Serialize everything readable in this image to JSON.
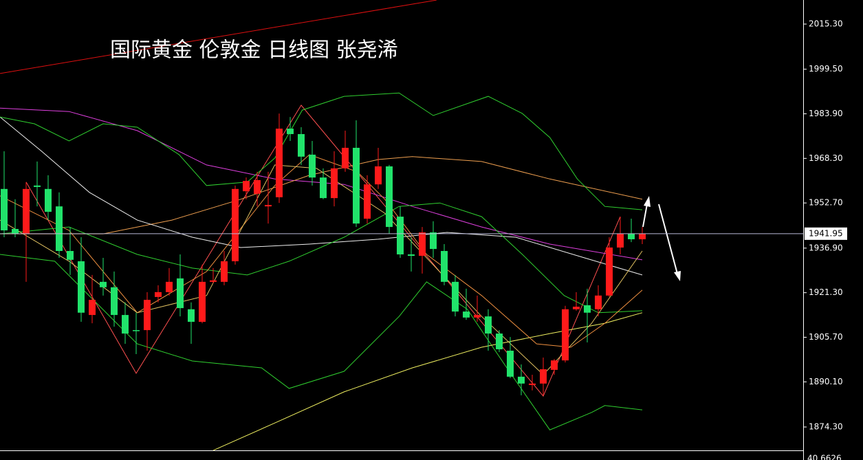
{
  "chart_data": {
    "type": "candlestick",
    "title": "国际黄金 伦敦金 日线图 张尧浠",
    "up_color": "#ff1a1a",
    "down_color": "#21e36b",
    "ylim": [
      1866.12,
      2023.72
    ],
    "yticks": [
      {
        "value": 2015.3,
        "label": "2015.30"
      },
      {
        "value": 1999.5,
        "label": "1999.50"
      },
      {
        "value": 1983.9,
        "label": "1983.90"
      },
      {
        "value": 1968.3,
        "label": "1968.30"
      },
      {
        "value": 1952.7,
        "label": "1952.70"
      },
      {
        "value": 1936.9,
        "label": "1936.90"
      },
      {
        "value": 1921.3,
        "label": "1921.30"
      },
      {
        "value": 1905.7,
        "label": "1905.70"
      },
      {
        "value": 1890.1,
        "label": "1890.10"
      },
      {
        "value": 1874.3,
        "label": "1874.30"
      }
    ],
    "current_price": 1941.95,
    "sub_panel_label": "40.6626",
    "open": [
      1957.6,
      1943.6,
      1941.9,
      1958.8,
      1957.6,
      1951.5,
      1935.9,
      1932.3,
      1913.5,
      1925.1,
      1923.2,
      1913.5,
      1908.2,
      1908.2,
      1919.8,
      1921.5,
      1926.3,
      1915.5,
      1911.1,
      1925.1,
      1925.1,
      1932.3,
      1956.8,
      1955.9,
      1951.5,
      1954.7,
      1978.7,
      1976.8,
      1969.6,
      1961.6,
      1954.4,
      1964.8,
      1972.0,
      1947.2,
      1959.2,
      1965.5,
      1947.9,
      1934.7,
      1934.2,
      1942.4,
      1935.9,
      1925.1,
      1914.7,
      1912.6,
      1913.0,
      1907.0,
      1901.0,
      1891.9,
      1889.0,
      1889.5,
      1894.3,
      1897.6,
      1915.5,
      1916.9,
      1915.5,
      1920.3,
      1937.1,
      1941.9,
      1940.0
    ],
    "high": [
      1970.8,
      1954.0,
      1960.0,
      1967.2,
      1962.4,
      1956.4,
      1944.3,
      1940.7,
      1927.5,
      1933.5,
      1928.7,
      1917.9,
      1914.3,
      1921.5,
      1923.9,
      1929.9,
      1934.7,
      1917.9,
      1931.1,
      1929.9,
      1935.9,
      1958.8,
      1961.6,
      1963.6,
      1963.6,
      1984.0,
      1982.8,
      1979.2,
      1974.4,
      1964.8,
      1970.8,
      1978.0,
      1981.6,
      1962.4,
      1972.0,
      1966.0,
      1951.5,
      1940.7,
      1944.3,
      1946.3,
      1938.3,
      1927.5,
      1922.7,
      1920.3,
      1915.5,
      1908.2,
      1905.8,
      1896.2,
      1892.6,
      1898.6,
      1898.1,
      1916.7,
      1921.5,
      1922.7,
      1923.9,
      1940.7,
      1947.9,
      1947.2,
      1944.3
    ],
    "low": [
      1940.7,
      1940.7,
      1925.1,
      1951.5,
      1946.7,
      1933.5,
      1927.5,
      1911.1,
      1910.6,
      1920.3,
      1909.4,
      1903.4,
      1899.8,
      1901.0,
      1917.9,
      1920.3,
      1913.0,
      1903.4,
      1910.6,
      1924.6,
      1923.9,
      1931.1,
      1954.0,
      1951.5,
      1945.5,
      1952.7,
      1974.4,
      1966.0,
      1958.8,
      1954.0,
      1951.5,
      1963.6,
      1944.3,
      1945.5,
      1957.6,
      1941.9,
      1933.5,
      1928.7,
      1928.0,
      1933.5,
      1923.9,
      1913.0,
      1911.8,
      1911.1,
      1901.0,
      1900.5,
      1891.4,
      1885.4,
      1887.1,
      1885.4,
      1892.6,
      1896.9,
      1915.0,
      1903.9,
      1913.0,
      1919.8,
      1934.7,
      1939.0,
      1938.3
    ],
    "close": [
      1943.1,
      1941.9,
      1957.6,
      1958.3,
      1949.6,
      1935.9,
      1932.8,
      1914.3,
      1918.8,
      1923.2,
      1913.5,
      1907.0,
      1908.0,
      1918.8,
      1921.5,
      1925.1,
      1915.9,
      1911.1,
      1925.1,
      1925.6,
      1932.3,
      1957.6,
      1960.4,
      1960.7,
      1952.0,
      1978.7,
      1976.8,
      1968.9,
      1961.6,
      1954.4,
      1964.8,
      1972.0,
      1945.5,
      1959.2,
      1965.5,
      1944.3,
      1934.7,
      1934.2,
      1942.4,
      1936.6,
      1925.1,
      1914.7,
      1912.6,
      1913.5,
      1907.0,
      1901.5,
      1891.9,
      1889.5,
      1889.5,
      1894.5,
      1897.6,
      1915.5,
      1916.4,
      1914.3,
      1920.3,
      1937.1,
      1941.9,
      1940.0,
      1941.95
    ],
    "overlays": [
      {
        "color": "#e01010",
        "x": [
          -0.375,
          39.3
        ],
        "values": [
          1998.0,
          2023.7
        ]
      },
      {
        "color": "#ff5050",
        "x": [
          2,
          12,
          27,
          49,
          56
        ],
        "values": [
          1960.0,
          1893.1,
          1986.9,
          1885.1,
          1947.9
        ]
      },
      {
        "color": "#e040e0",
        "x": [
          -0.375,
          5.9,
          12.1,
          18.4,
          24.6,
          30.9,
          37.1,
          43.4,
          49.6,
          58
        ],
        "values": [
          1985.9,
          1984.7,
          1978.0,
          1966.0,
          1961.1,
          1959.2,
          1951.5,
          1944.3,
          1938.3,
          1932.8
        ]
      },
      {
        "color": "#f0a050",
        "x": [
          -0.375,
          9,
          15.25,
          21.5,
          27.75,
          34,
          37.1,
          43.4,
          49.6,
          58
        ],
        "values": [
          1941.9,
          1941.9,
          1946.7,
          1954.0,
          1962.4,
          1967.9,
          1968.9,
          1967.2,
          1961.1,
          1954.0
        ]
      },
      {
        "color": "#f0f0f0",
        "x": [
          -0.375,
          3.4,
          7.75,
          12.1,
          17.1,
          21.5,
          27.75,
          34,
          40.25,
          46.5,
          52.75,
          58
        ],
        "values": [
          1982.8,
          1970.8,
          1956.4,
          1946.7,
          1940.7,
          1937.1,
          1938.3,
          1940.0,
          1942.4,
          1940.7,
          1933.5,
          1927.5
        ]
      },
      {
        "color": "#30d030",
        "x": [
          -0.375,
          2.75,
          5.9,
          9,
          12.1,
          15.9,
          18.4,
          22.1,
          24.6,
          27.1,
          30.9,
          35.9,
          39,
          44,
          47.1,
          49.6,
          52.1,
          54.6,
          58
        ],
        "values": [
          1982.8,
          1980.4,
          1974.4,
          1980.4,
          1979.2,
          1969.6,
          1958.8,
          1960.0,
          1968.4,
          1985.2,
          1990.0,
          1991.2,
          1983.3,
          1990.0,
          1984.0,
          1975.6,
          1961.1,
          1951.5,
          1950.3
        ]
      },
      {
        "color": "#30d030",
        "x": [
          -0.375,
          5.9,
          12.1,
          17.1,
          22.1,
          25.9,
          30.9,
          35.9,
          39.6,
          43.4,
          47.1,
          50.9,
          54,
          58
        ],
        "values": [
          1941.9,
          1944.3,
          1934.7,
          1929.9,
          1927.5,
          1932.3,
          1940.7,
          1951.5,
          1952.7,
          1947.9,
          1934.7,
          1920.3,
          1914.3,
          1915.0
        ]
      },
      {
        "color": "#30d030",
        "x": [
          -0.375,
          4.6,
          12.1,
          17.1,
          23.4,
          25.9,
          30.9,
          35.9,
          38.4,
          42.1,
          45.9,
          49.6,
          53.4,
          54.6,
          58
        ],
        "values": [
          1934.7,
          1932.3,
          1903.4,
          1897.4,
          1895.0,
          1887.8,
          1893.8,
          1913.0,
          1925.1,
          1915.5,
          1893.8,
          1873.3,
          1879.4,
          1881.8,
          1880.3
        ]
      },
      {
        "color": "#f0f060",
        "x": [
          19,
          24.6,
          30.9,
          37.1,
          43.4,
          49.6,
          54.6,
          58
        ],
        "values": [
          1866.1,
          1875.7,
          1886.6,
          1895.0,
          1902.2,
          1907.0,
          1910.6,
          1914.3
        ]
      },
      {
        "color": "#f09040",
        "x": [
          -0.375,
          5.9,
          12.1,
          18.4,
          24.6,
          27.75,
          32.1,
          34.6,
          38.4,
          43.4,
          48.4,
          51.5,
          54.6,
          58
        ],
        "values": [
          1955.2,
          1943.1,
          1914.3,
          1928.7,
          1958.8,
          1969.6,
          1963.6,
          1954.0,
          1934.7,
          1920.3,
          1903.4,
          1902.2,
          1910.6,
          1922.2
        ]
      },
      {
        "color": "#e0c060",
        "x": [
          -0.375,
          5.9,
          12.1,
          18.4,
          24.6,
          28.4,
          34.6,
          43.4,
          49,
          53.4,
          58
        ],
        "values": [
          1946.7,
          1932.3,
          1914.3,
          1920.3,
          1966.0,
          1964.8,
          1949.1,
          1913.0,
          1892.6,
          1910.6,
          1935.9
        ]
      }
    ]
  }
}
